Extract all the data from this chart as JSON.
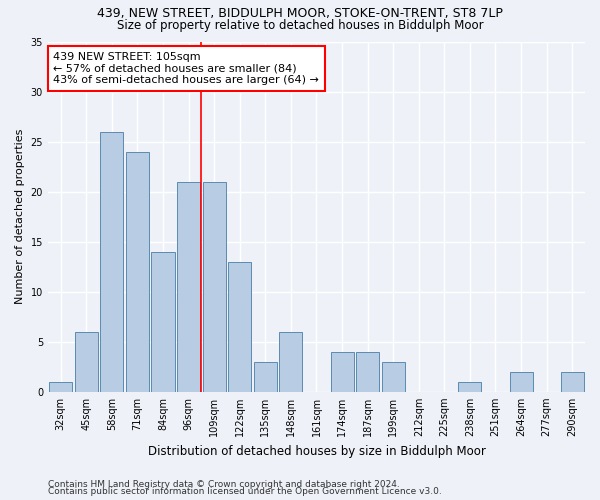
{
  "title1": "439, NEW STREET, BIDDULPH MOOR, STOKE-ON-TRENT, ST8 7LP",
  "title2": "Size of property relative to detached houses in Biddulph Moor",
  "xlabel": "Distribution of detached houses by size in Biddulph Moor",
  "ylabel": "Number of detached properties",
  "categories": [
    "32sqm",
    "45sqm",
    "58sqm",
    "71sqm",
    "84sqm",
    "96sqm",
    "109sqm",
    "122sqm",
    "135sqm",
    "148sqm",
    "161sqm",
    "174sqm",
    "187sqm",
    "199sqm",
    "212sqm",
    "225sqm",
    "238sqm",
    "251sqm",
    "264sqm",
    "277sqm",
    "290sqm"
  ],
  "values": [
    1,
    6,
    26,
    24,
    14,
    21,
    21,
    13,
    3,
    6,
    0,
    4,
    4,
    3,
    0,
    0,
    1,
    0,
    2,
    0,
    2
  ],
  "bar_color": "#b8cce4",
  "bar_edge_color": "#5a8bb0",
  "highlight_line_index": 6,
  "annotation_line1": "439 NEW STREET: 105sqm",
  "annotation_line2": "← 57% of detached houses are smaller (84)",
  "annotation_line3": "43% of semi-detached houses are larger (64) →",
  "annotation_box_color": "white",
  "annotation_box_edge_color": "red",
  "vline_color": "red",
  "ylim": [
    0,
    35
  ],
  "yticks": [
    0,
    5,
    10,
    15,
    20,
    25,
    30,
    35
  ],
  "bg_color": "#eef2f8",
  "grid_color": "white",
  "footnote1": "Contains HM Land Registry data © Crown copyright and database right 2024.",
  "footnote2": "Contains public sector information licensed under the Open Government Licence v3.0.",
  "title1_fontsize": 9,
  "title2_fontsize": 8.5,
  "xlabel_fontsize": 8.5,
  "ylabel_fontsize": 8,
  "tick_fontsize": 7,
  "annotation_fontsize": 8,
  "footnote_fontsize": 6.5
}
